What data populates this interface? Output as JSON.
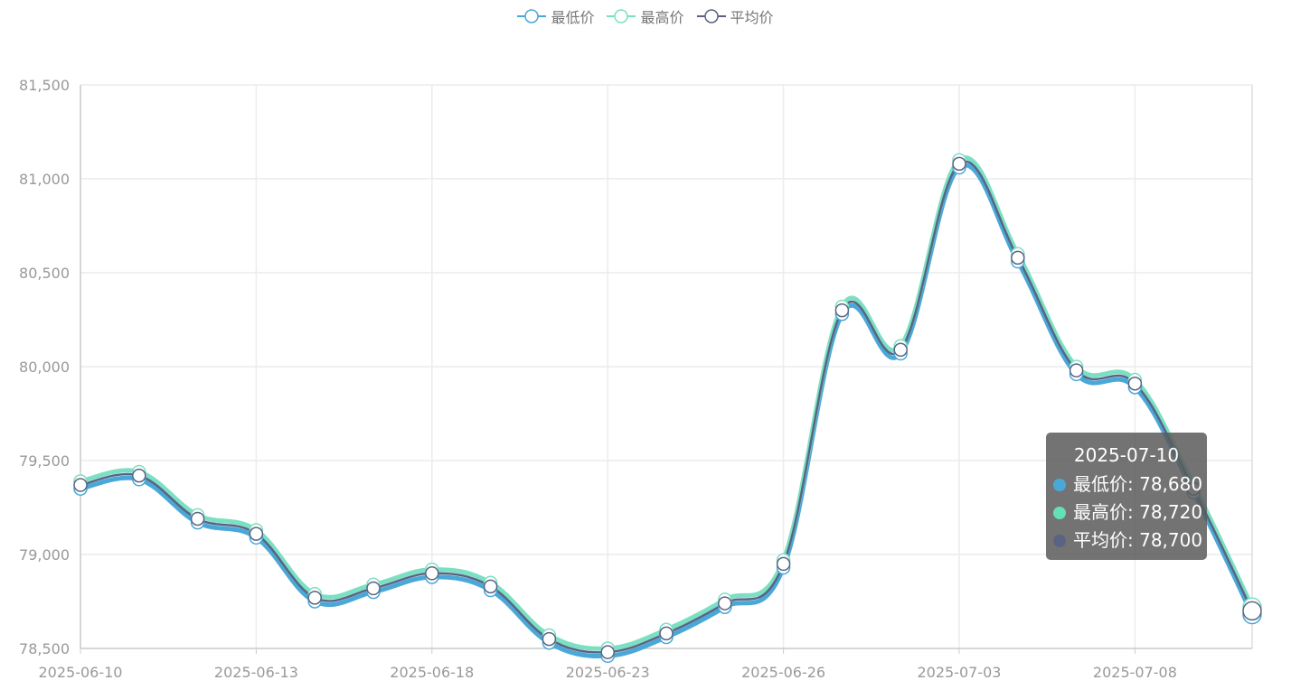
{
  "legend": [
    {
      "name": "最低价",
      "color": "#4aa8d8"
    },
    {
      "name": "最高价",
      "color": "#7be0c3"
    },
    {
      "name": "平均价",
      "color": "#5a6482"
    }
  ],
  "tooltip": {
    "date": "2025-07-10",
    "rows": [
      {
        "label": "最低价: 78,680",
        "color": "#4aa8d8"
      },
      {
        "label": "最高价: 78,720",
        "color": "#63e0b4"
      },
      {
        "label": "平均价: 78,700",
        "color": "#5a6482"
      }
    ]
  },
  "chart_data": {
    "type": "line",
    "x": [
      "2025-06-10",
      "2025-06-11",
      "2025-06-12",
      "2025-06-13",
      "2025-06-16",
      "2025-06-17",
      "2025-06-18",
      "2025-06-19",
      "2025-06-20",
      "2025-06-23",
      "2025-06-24",
      "2025-06-25",
      "2025-06-26",
      "2025-06-27",
      "2025-06-30",
      "2025-07-03",
      "2025-07-04",
      "2025-07-07",
      "2025-07-08",
      "2025-07-09",
      "2025-07-10"
    ],
    "x_tick_labels": [
      "2025-06-10",
      "2025-06-13",
      "2025-06-18",
      "2025-06-23",
      "2025-06-26",
      "2025-07-03",
      "2025-07-08"
    ],
    "x_tick_index": [
      0,
      3,
      6,
      9,
      12,
      15,
      18
    ],
    "y_ticks": [
      78500,
      79000,
      79500,
      80000,
      80500,
      81000,
      81500
    ],
    "y_tick_labels": [
      "78,500",
      "79,000",
      "79,500",
      "80,000",
      "80,500",
      "81,000",
      "81,500"
    ],
    "ylim": [
      78500,
      81500
    ],
    "grid": true,
    "legend_position": "top-center",
    "series": [
      {
        "name": "最低价",
        "color": "#4aa8d8",
        "values": [
          79350,
          79400,
          79170,
          79090,
          78750,
          78800,
          78880,
          78810,
          78530,
          78460,
          78560,
          78720,
          78930,
          80280,
          80070,
          81060,
          80560,
          79960,
          79890,
          79330,
          78680
        ]
      },
      {
        "name": "最高价",
        "color": "#7be0c3",
        "values": [
          79390,
          79440,
          79210,
          79130,
          78790,
          78840,
          78920,
          78850,
          78570,
          78500,
          78600,
          78760,
          78970,
          80320,
          80110,
          81100,
          80600,
          80000,
          79930,
          79370,
          78720
        ]
      },
      {
        "name": "平均价",
        "color": "#5a6482",
        "values": [
          79370,
          79420,
          79190,
          79110,
          78770,
          78820,
          78900,
          78830,
          78550,
          78480,
          78580,
          78740,
          78950,
          80300,
          80090,
          81080,
          80580,
          79980,
          79910,
          79350,
          78700
        ]
      }
    ]
  }
}
